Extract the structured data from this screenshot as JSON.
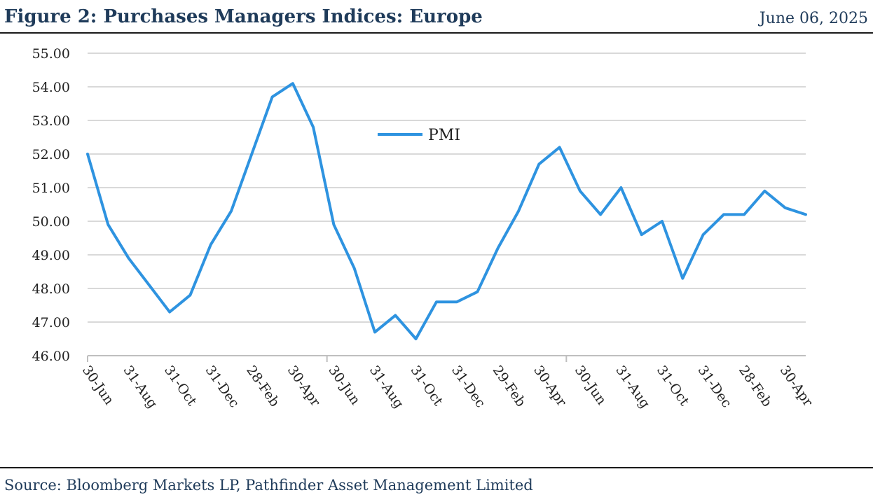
{
  "header": {
    "title": "Figure 2: Purchases Managers Indices: Europe",
    "date": "June 06, 2025"
  },
  "footer": {
    "source": "Source: Bloomberg Markets LP, Pathfinder Asset Management Limited"
  },
  "chart_data": {
    "type": "line",
    "title": "",
    "xlabel": "",
    "ylabel": "",
    "ylim": [
      46,
      55
    ],
    "ytick_labels": [
      "46.00",
      "47.00",
      "48.00",
      "49.00",
      "50.00",
      "51.00",
      "52.00",
      "53.00",
      "54.00",
      "55.00"
    ],
    "xtick_labels": [
      "30-Jun",
      "31-Aug",
      "31-Oct",
      "31-Dec",
      "28-Feb",
      "30-Apr",
      "30-Jun",
      "31-Aug",
      "31-Oct",
      "31-Dec",
      "29-Feb",
      "30-Apr",
      "30-Jun",
      "31-Aug",
      "31-Oct",
      "31-Dec",
      "28-Feb",
      "30-Apr"
    ],
    "grid": true,
    "legend_position": "upper-center",
    "line_color": "#2e93e0",
    "series": [
      {
        "name": "PMI",
        "values": [
          52.0,
          49.9,
          48.9,
          48.1,
          47.3,
          47.8,
          49.3,
          50.3,
          52.0,
          53.7,
          54.1,
          52.8,
          49.9,
          48.6,
          46.7,
          47.2,
          46.5,
          47.6,
          47.6,
          47.9,
          49.2,
          50.3,
          51.7,
          52.2,
          50.9,
          50.2,
          51.0,
          49.6,
          50.0,
          48.3,
          49.6,
          50.2,
          50.2,
          50.9,
          50.4,
          50.2
        ]
      }
    ]
  }
}
